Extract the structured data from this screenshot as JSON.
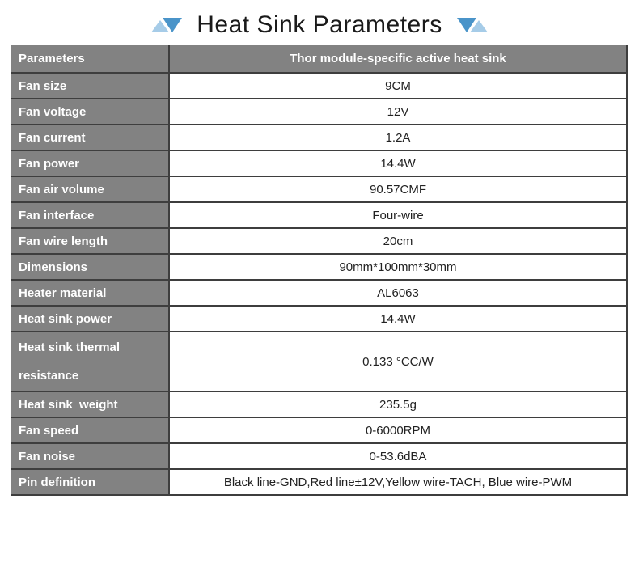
{
  "title": {
    "text": "Heat Sink Parameters"
  },
  "decorations": {
    "left": [
      "triangle-up-icon",
      "triangle-down-icon"
    ],
    "right": [
      "triangle-down-icon",
      "triangle-up-icon"
    ]
  },
  "colors": {
    "header_bg": "#828282",
    "label_bg": "#828282",
    "border": "#3e3e3e",
    "label_text": "#ffffff",
    "value_text": "#222222",
    "triangle_light": "#a6cce8",
    "triangle_dark": "#4a94c9",
    "title_text": "#1a1a1a"
  },
  "table": {
    "header": {
      "param_label": "Parameters",
      "value_label": "Thor module-specific active heat sink"
    },
    "rows": [
      {
        "label": "Fan size",
        "value": "9CM"
      },
      {
        "label": "Fan voltage",
        "value": "12V"
      },
      {
        "label": "Fan current",
        "value": "1.2A"
      },
      {
        "label": "Fan power",
        "value": "14.4W"
      },
      {
        "label": "Fan air volume",
        "value": "90.57CMF"
      },
      {
        "label": "Fan interface",
        "value": "Four-wire"
      },
      {
        "label": "Fan wire length",
        "value": "20cm"
      },
      {
        "label": "Dimensions",
        "value": "90mm*100mm*30mm"
      },
      {
        "label": "Heater material",
        "value": "AL6063"
      },
      {
        "label": "Heat sink power",
        "value": "14.4W"
      },
      {
        "label": "Heat sink thermal resistance",
        "value": "0.133 °CC/W",
        "tall": true
      },
      {
        "label": "Heat sink  weight",
        "value": "235.5g"
      },
      {
        "label": "Fan speed",
        "value": "0-6000RPM"
      },
      {
        "label": "Fan noise",
        "value": "0-53.6dBA"
      },
      {
        "label": "Pin definition",
        "value": "Black line-GND,Red line±12V,Yellow wire-TACH, Blue wire-PWM"
      }
    ]
  }
}
